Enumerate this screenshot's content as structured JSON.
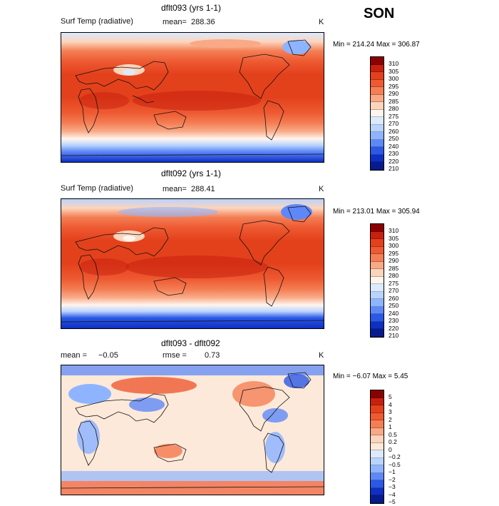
{
  "season": "SON",
  "panels": [
    {
      "title": "dflt093 (yrs 1-1)",
      "left_label": "Surf Temp (radiative)",
      "mean_label": "mean=",
      "mean_value": "288.36",
      "units": "K",
      "min_max": "Min = 214.24 Max = 306.87",
      "colorbar_labels": [
        "310",
        "305",
        "300",
        "295",
        "290",
        "285",
        "280",
        "275",
        "270",
        "260",
        "250",
        "240",
        "230",
        "220",
        "210"
      ],
      "colorbar_colors": [
        "#8b0000",
        "#c8200e",
        "#e3411c",
        "#ee5a32",
        "#f47f55",
        "#f9a986",
        "#fcd4bc",
        "#fff5ee",
        "#dbeaff",
        "#b9d3ff",
        "#8fb4ff",
        "#5e88f7",
        "#2b58e6",
        "#0f2fc3",
        "#061c8e"
      ]
    },
    {
      "title": "dflt092 (yrs 1-1)",
      "left_label": "Surf Temp (radiative)",
      "mean_label": "mean=",
      "mean_value": "288.41",
      "units": "K",
      "min_max": "Min = 213.01 Max = 305.94",
      "colorbar_labels": [
        "310",
        "305",
        "300",
        "295",
        "290",
        "285",
        "280",
        "275",
        "270",
        "260",
        "250",
        "240",
        "230",
        "220",
        "210"
      ],
      "colorbar_colors": [
        "#8b0000",
        "#c8200e",
        "#e3411c",
        "#ee5a32",
        "#f47f55",
        "#f9a986",
        "#fcd4bc",
        "#fff5ee",
        "#dbeaff",
        "#b9d3ff",
        "#8fb4ff",
        "#5e88f7",
        "#2b58e6",
        "#0f2fc3",
        "#061c8e"
      ]
    },
    {
      "title": "dflt093 - dflt092",
      "left_label": "mean =",
      "mean_label": "rmse =",
      "left_value": "−0.05",
      "mean_value": "0.73",
      "units": "K",
      "min_max": "Min = −6.07 Max = 5.45",
      "colorbar_labels": [
        "5",
        "4",
        "3",
        "2",
        "1",
        "0.5",
        "0.2",
        "0",
        "−0.2",
        "−0.5",
        "−1",
        "−2",
        "−3",
        "−4",
        "−5"
      ],
      "colorbar_colors": [
        "#8b0000",
        "#c8200e",
        "#e3411c",
        "#ee5a32",
        "#f47f55",
        "#f9a986",
        "#fcd4bc",
        "#fde9d9",
        "#dbeaff",
        "#b9d3ff",
        "#8fb4ff",
        "#5e88f7",
        "#2b58e6",
        "#0f2fc3",
        "#061c8e"
      ]
    }
  ]
}
